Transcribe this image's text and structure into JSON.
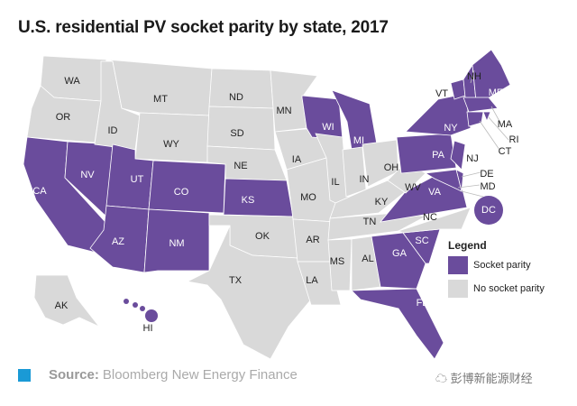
{
  "title": "U.S. residential PV socket parity by state, 2017",
  "colors": {
    "parity": "#6a4c9c",
    "no_parity": "#d9d9d9",
    "source_marker": "#1a9ad6"
  },
  "legend": {
    "title": "Legend",
    "items": [
      {
        "label": "Socket parity",
        "color": "#6a4c9c"
      },
      {
        "label": "No socket parity",
        "color": "#d9d9d9"
      }
    ]
  },
  "states": [
    {
      "code": "WA",
      "parity": false
    },
    {
      "code": "OR",
      "parity": false
    },
    {
      "code": "CA",
      "parity": true
    },
    {
      "code": "NV",
      "parity": true
    },
    {
      "code": "ID",
      "parity": false
    },
    {
      "code": "MT",
      "parity": false
    },
    {
      "code": "WY",
      "parity": false
    },
    {
      "code": "UT",
      "parity": true
    },
    {
      "code": "AZ",
      "parity": true
    },
    {
      "code": "CO",
      "parity": true
    },
    {
      "code": "NM",
      "parity": true
    },
    {
      "code": "ND",
      "parity": false
    },
    {
      "code": "SD",
      "parity": false
    },
    {
      "code": "NE",
      "parity": false
    },
    {
      "code": "KS",
      "parity": true
    },
    {
      "code": "OK",
      "parity": false
    },
    {
      "code": "TX",
      "parity": false
    },
    {
      "code": "MN",
      "parity": false
    },
    {
      "code": "IA",
      "parity": false
    },
    {
      "code": "MO",
      "parity": false
    },
    {
      "code": "AR",
      "parity": false
    },
    {
      "code": "LA",
      "parity": false
    },
    {
      "code": "WI",
      "parity": true
    },
    {
      "code": "MI",
      "parity": true
    },
    {
      "code": "IL",
      "parity": false
    },
    {
      "code": "IN",
      "parity": false
    },
    {
      "code": "OH",
      "parity": false
    },
    {
      "code": "KY",
      "parity": false
    },
    {
      "code": "TN",
      "parity": false
    },
    {
      "code": "MS",
      "parity": false
    },
    {
      "code": "AL",
      "parity": false
    },
    {
      "code": "GA",
      "parity": true
    },
    {
      "code": "FL",
      "parity": true
    },
    {
      "code": "SC",
      "parity": true
    },
    {
      "code": "NC",
      "parity": false
    },
    {
      "code": "VA",
      "parity": true
    },
    {
      "code": "WV",
      "parity": false
    },
    {
      "code": "PA",
      "parity": true
    },
    {
      "code": "NY",
      "parity": true
    },
    {
      "code": "NJ",
      "parity": true
    },
    {
      "code": "DE",
      "parity": true
    },
    {
      "code": "MD",
      "parity": true
    },
    {
      "code": "VT",
      "parity": true
    },
    {
      "code": "NH",
      "parity": true
    },
    {
      "code": "ME",
      "parity": true
    },
    {
      "code": "MA",
      "parity": true
    },
    {
      "code": "RI",
      "parity": true
    },
    {
      "code": "CT",
      "parity": true
    },
    {
      "code": "DC",
      "parity": true
    },
    {
      "code": "AK",
      "parity": false
    },
    {
      "code": "HI",
      "parity": true
    }
  ],
  "source": {
    "label": "Source:",
    "text": "Bloomberg New Energy Finance"
  },
  "watermark": "彭博新能源财经"
}
